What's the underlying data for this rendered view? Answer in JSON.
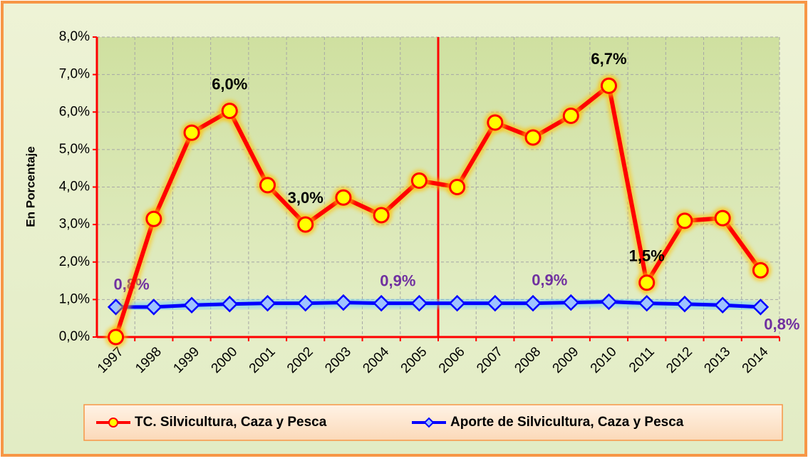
{
  "chart_data": {
    "type": "line",
    "y_label": "En Porcentaje",
    "categories": [
      "1997",
      "1998",
      "1999",
      "2000",
      "2001",
      "2002",
      "2003",
      "2004",
      "2005",
      "2006",
      "2007",
      "2008",
      "2009",
      "2010",
      "2011",
      "2012",
      "2013",
      "2014"
    ],
    "series": [
      {
        "name": "TC. Silvicultura, Caza y Pesca",
        "color": "#ff0000",
        "values": [
          0.0,
          3.15,
          5.45,
          6.03,
          4.05,
          3.0,
          3.72,
          3.25,
          4.17,
          4.0,
          5.72,
          5.32,
          5.9,
          6.7,
          1.45,
          3.1,
          3.17,
          1.78
        ],
        "value_labels": [
          null,
          null,
          null,
          "6,0%",
          null,
          "3,0%",
          null,
          null,
          null,
          null,
          null,
          null,
          null,
          "6,7%",
          "1,5%",
          null,
          null,
          null
        ]
      },
      {
        "name": "Aporte de Silvicultura, Caza y Pesca",
        "color": "#0000ff",
        "values": [
          0.8,
          0.8,
          0.85,
          0.88,
          0.9,
          0.9,
          0.92,
          0.9,
          0.9,
          0.9,
          0.9,
          0.9,
          0.92,
          0.94,
          0.9,
          0.88,
          0.85,
          0.8
        ],
        "value_labels": [
          "0,8%",
          null,
          null,
          null,
          null,
          null,
          null,
          null,
          "0,9%",
          null,
          null,
          null,
          "0,9%",
          null,
          null,
          null,
          null,
          "0,8%"
        ]
      }
    ],
    "ylim": [
      0,
      8
    ],
    "yticks": [
      {
        "value": 0,
        "label": "0,0%"
      },
      {
        "value": 1,
        "label": "1,0%"
      },
      {
        "value": 2,
        "label": "2,0%"
      },
      {
        "value": 3,
        "label": "3,0%"
      },
      {
        "value": 4,
        "label": "4,0%"
      },
      {
        "value": 5,
        "label": "5,0%"
      },
      {
        "value": 6,
        "label": "6,0%"
      },
      {
        "value": 7,
        "label": "7,0%"
      },
      {
        "value": 8,
        "label": "8,0%"
      }
    ],
    "grid": true,
    "legend": "bottom"
  }
}
